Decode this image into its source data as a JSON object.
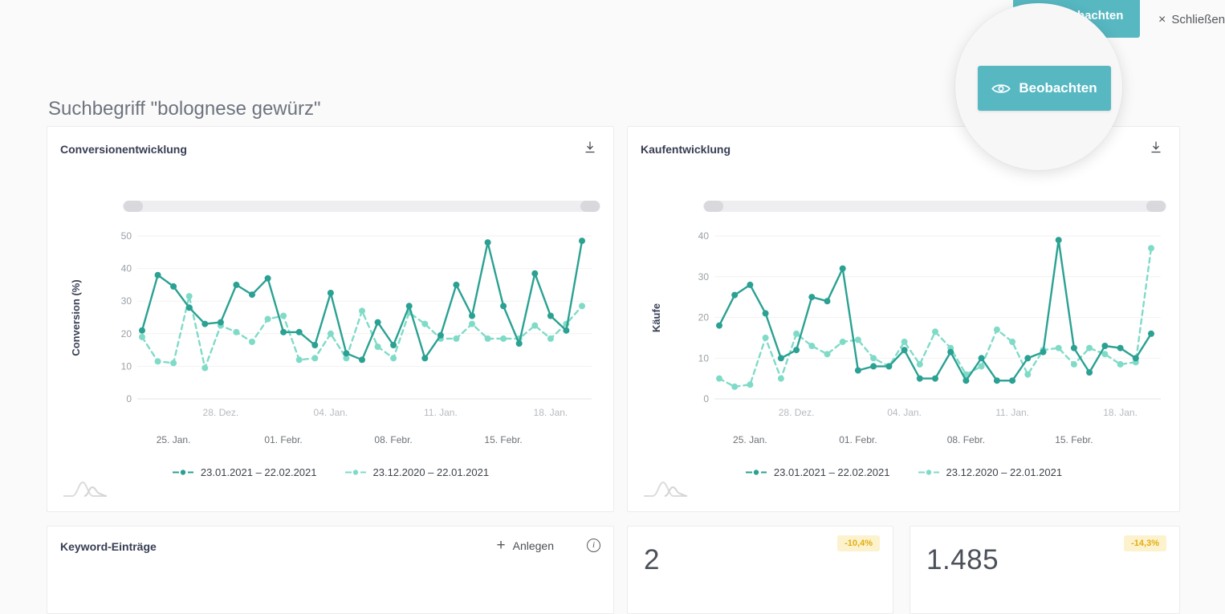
{
  "page_title": "Suchbegriff \"bolognese gewürz\"",
  "colors": {
    "accent_teal": "#57b8c2",
    "series_dark": "#2aa192",
    "series_light": "#7fdbc7",
    "badge_bg": "#fcf2cd",
    "badge_text": "#e3ae10",
    "card_bg": "#ffffff",
    "page_bg": "#fafafa"
  },
  "topbar": {
    "watch_button_label": "Beobachten",
    "close_icon": "×",
    "close_label": "Schließen"
  },
  "spotlight": {
    "button_label": "Beobachten"
  },
  "chart_data": [
    {
      "type": "line",
      "title": "Conversionentwicklung",
      "ylabel": "Conversion (%)",
      "ylim": [
        0,
        50
      ],
      "yticks": [
        0,
        10,
        20,
        30,
        40,
        50
      ],
      "grid": true,
      "legend_position": "bottom",
      "x_axis": {
        "top_labels": [
          "28. Dez.",
          "04. Jan.",
          "11. Jan.",
          "18. Jan."
        ],
        "top_indices": [
          5,
          12,
          19,
          26
        ],
        "bottom_labels": [
          "25. Jan.",
          "01. Febr.",
          "08. Febr.",
          "15. Febr."
        ],
        "bottom_indices": [
          2,
          9,
          16,
          23
        ]
      },
      "series": [
        {
          "name": "23.01.2021 – 22.02.2021",
          "color": "#2aa192",
          "dash": false,
          "values": [
            21,
            38,
            34.5,
            28,
            23,
            23.5,
            35,
            32,
            37,
            20.5,
            20.5,
            16.5,
            32.5,
            14,
            12,
            23.5,
            16.5,
            28.5,
            12.5,
            19.5,
            35,
            25.5,
            48,
            28.5,
            17,
            38.5,
            25.5,
            21,
            48.5
          ]
        },
        {
          "name": "23.12.2020 – 22.01.2021",
          "color": "#7fdbc7",
          "dash": true,
          "values": [
            19,
            11.5,
            11,
            31.5,
            9.5,
            22.5,
            20.5,
            17.5,
            24.5,
            25.5,
            12,
            12.5,
            20,
            12.5,
            27,
            16,
            12.5,
            26.5,
            23,
            18.5,
            18.5,
            23,
            18.5,
            18.5,
            18.5,
            22.5,
            18.5,
            23,
            28.5
          ]
        }
      ]
    },
    {
      "type": "line",
      "title": "Kaufentwicklung",
      "ylabel": "Käufe",
      "ylim": [
        0,
        40
      ],
      "yticks": [
        0,
        10,
        20,
        30,
        40
      ],
      "grid": true,
      "legend_position": "bottom",
      "x_axis": {
        "top_labels": [
          "28. Dez.",
          "04. Jan.",
          "11. Jan.",
          "18. Jan."
        ],
        "top_indices": [
          5,
          12,
          19,
          26
        ],
        "bottom_labels": [
          "25. Jan.",
          "01. Febr.",
          "08. Febr.",
          "15. Febr."
        ],
        "bottom_indices": [
          2,
          9,
          16,
          23
        ]
      },
      "series": [
        {
          "name": "23.01.2021 – 22.02.2021",
          "color": "#2aa192",
          "dash": false,
          "values": [
            18,
            25.5,
            28,
            21,
            10,
            12,
            25,
            24,
            32,
            7,
            8,
            8,
            12,
            5,
            5,
            11.5,
            4.5,
            10,
            4.5,
            4.5,
            10,
            11.5,
            39,
            12.5,
            6.5,
            13,
            12.5,
            10,
            16
          ]
        },
        {
          "name": "23.12.2020 – 22.01.2021",
          "color": "#7fdbc7",
          "dash": true,
          "values": [
            5,
            3,
            3.5,
            15,
            5,
            16,
            13,
            11,
            14,
            14.5,
            10,
            8,
            14,
            8.5,
            16.5,
            12.5,
            6,
            8,
            17,
            14,
            6,
            12,
            12.5,
            8.5,
            12.5,
            11,
            8.5,
            9,
            37
          ]
        }
      ]
    }
  ],
  "keyword_card": {
    "title": "Keyword-Einträge",
    "add_icon": "+",
    "add_label": "Anlegen",
    "info_icon": "i"
  },
  "stat_cards": [
    {
      "value": "2",
      "badge": "-10,4%"
    },
    {
      "value": "1.485",
      "badge": "-14,3%"
    }
  ]
}
